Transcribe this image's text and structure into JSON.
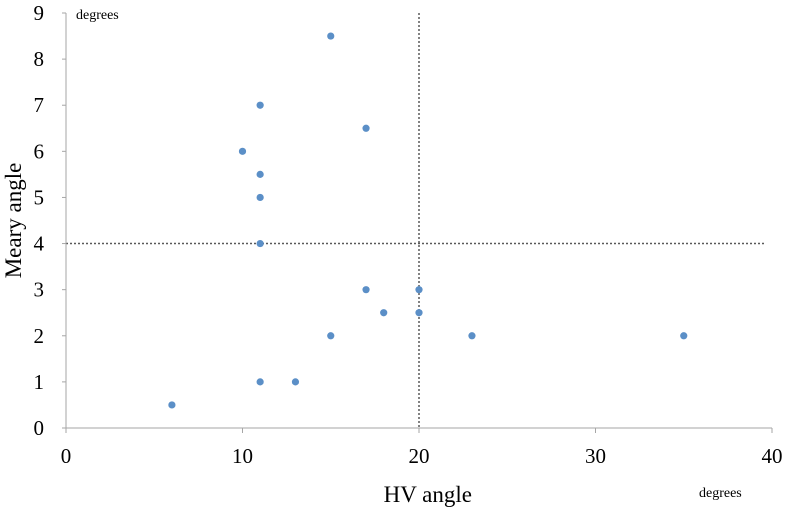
{
  "chart_data": {
    "type": "scatter",
    "xlabel": "HV angle",
    "ylabel": "Meary angle",
    "x_unit": "degrees",
    "y_unit": "degrees",
    "xlim": [
      0,
      40
    ],
    "ylim": [
      0,
      9
    ],
    "x_ticks": [
      "0",
      "10",
      "20",
      "30",
      "40"
    ],
    "y_ticks": [
      "0",
      "1",
      "2",
      "3",
      "4",
      "5",
      "6",
      "7",
      "8",
      "9"
    ],
    "grid": false,
    "legend": "none",
    "reference_lines": {
      "x": 20,
      "y": 4
    },
    "colors": {
      "point": "#5B8FC7",
      "axis": "#A6A6A6",
      "reference_line": "#595959"
    },
    "series": [
      {
        "points": [
          {
            "x": 6,
            "y": 0.5
          },
          {
            "x": 10,
            "y": 6
          },
          {
            "x": 11,
            "y": 7
          },
          {
            "x": 11,
            "y": 5.5
          },
          {
            "x": 11,
            "y": 5
          },
          {
            "x": 11,
            "y": 4
          },
          {
            "x": 11,
            "y": 1
          },
          {
            "x": 13,
            "y": 1
          },
          {
            "x": 15,
            "y": 8.5
          },
          {
            "x": 15,
            "y": 2
          },
          {
            "x": 17,
            "y": 6.5
          },
          {
            "x": 17,
            "y": 3
          },
          {
            "x": 18,
            "y": 2.5
          },
          {
            "x": 20,
            "y": 3
          },
          {
            "x": 20,
            "y": 2.5
          },
          {
            "x": 23,
            "y": 2
          },
          {
            "x": 35,
            "y": 2
          }
        ]
      }
    ]
  }
}
